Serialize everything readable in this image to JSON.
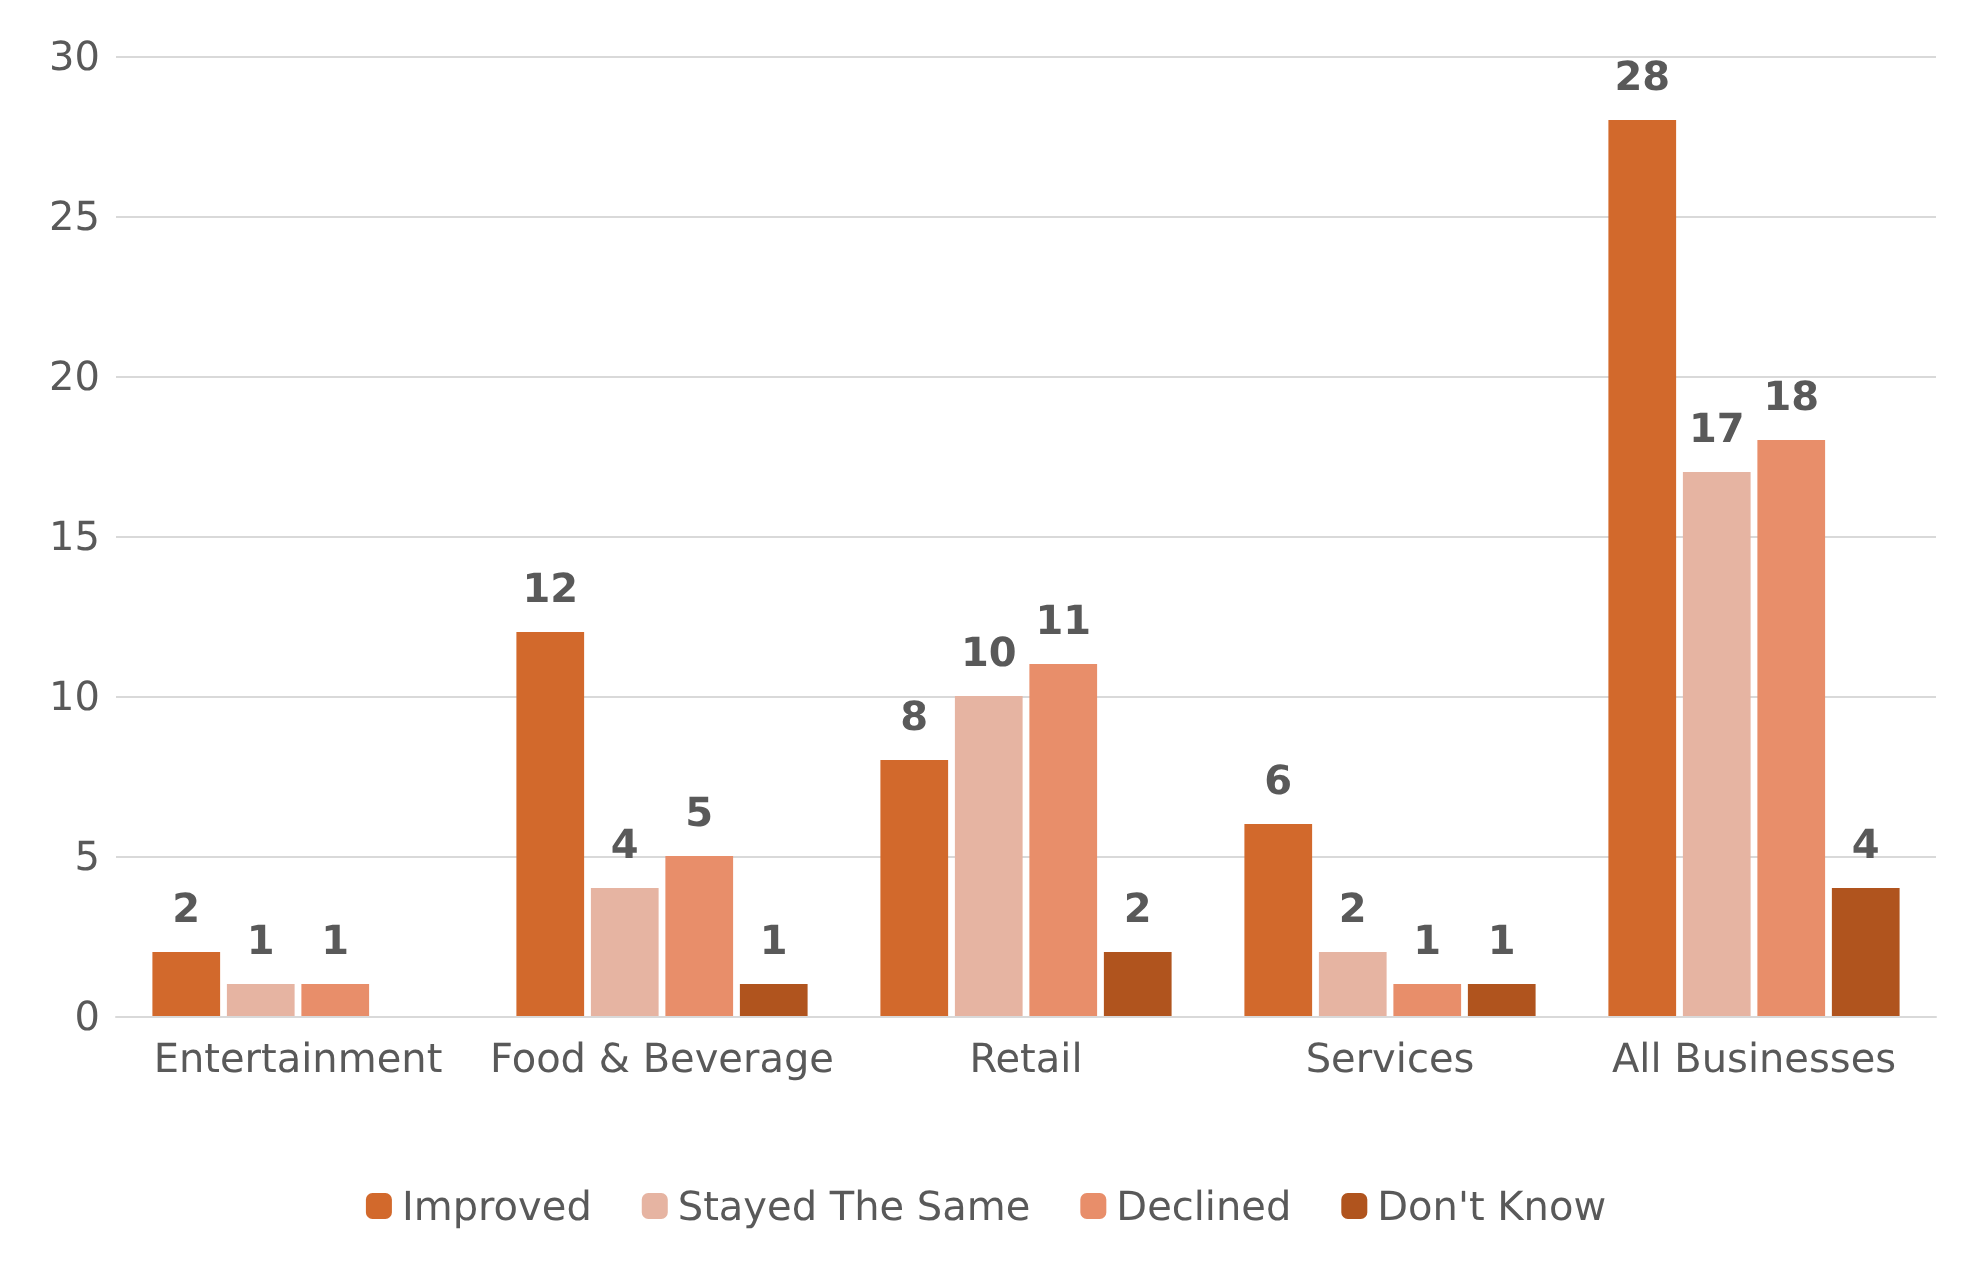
{
  "chart_data": {
    "type": "bar",
    "categories": [
      "Entertainment",
      "Food & Beverage",
      "Retail",
      "Services",
      "All Businesses"
    ],
    "series": [
      {
        "name": "Improved",
        "color": "#d2692c",
        "values": [
          2,
          12,
          8,
          6,
          28
        ]
      },
      {
        "name": "Stayed The Same",
        "color": "#e6b4a2",
        "values": [
          1,
          4,
          10,
          2,
          17
        ]
      },
      {
        "name": "Declined",
        "color": "#e88e6a",
        "values": [
          1,
          5,
          11,
          1,
          18
        ]
      },
      {
        "name": "Don't Know",
        "color": "#b0541e",
        "values": [
          null,
          1,
          2,
          1,
          4
        ]
      }
    ],
    "ylim": [
      0,
      30
    ],
    "yticks": [
      0,
      5,
      10,
      15,
      20,
      25,
      30
    ],
    "grid": "y",
    "legend": "bottom",
    "data_labels": true
  }
}
